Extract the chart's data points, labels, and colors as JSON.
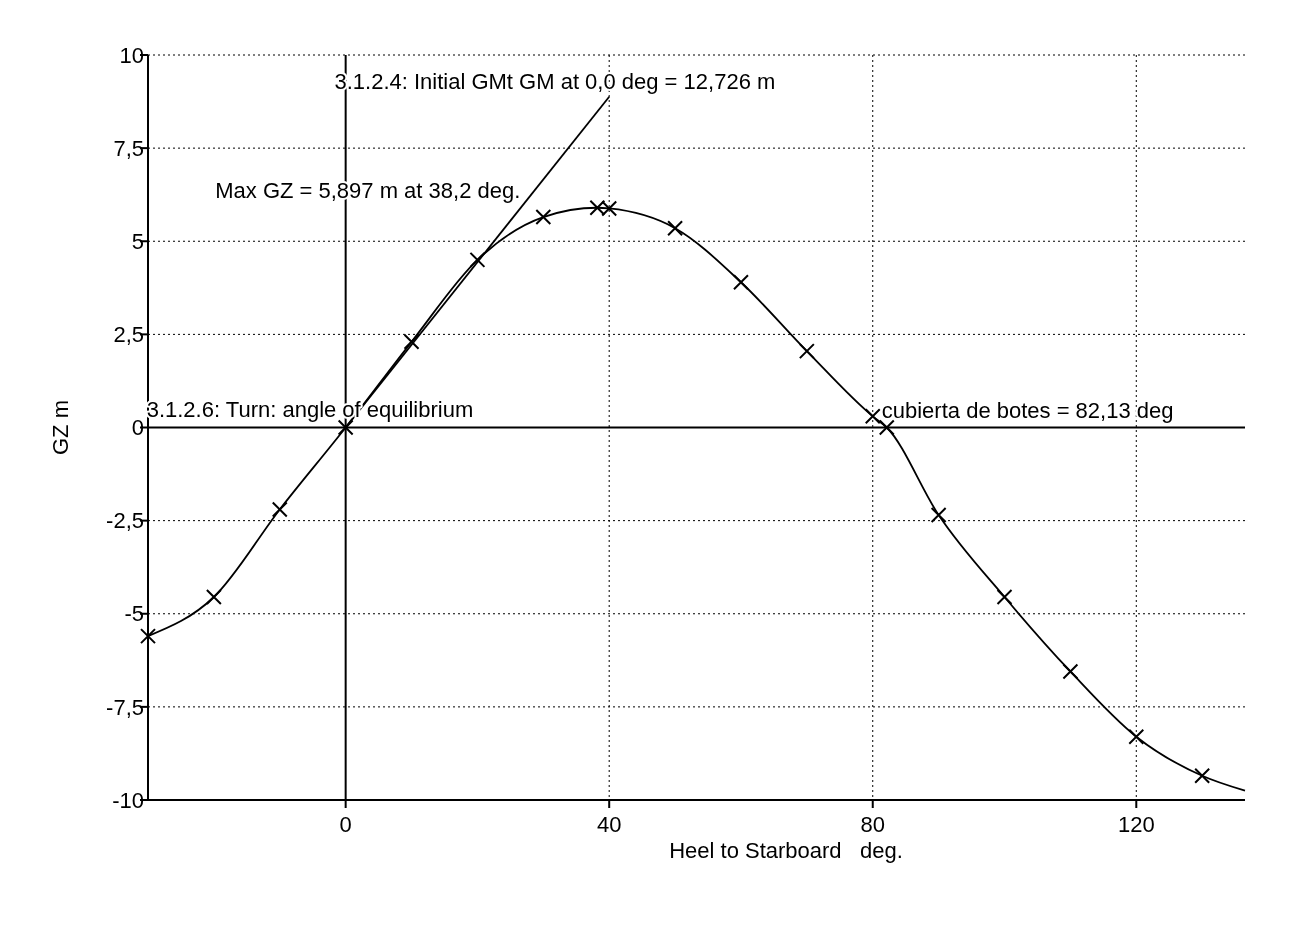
{
  "chart_data": {
    "type": "line",
    "xlabel": "Heel to Starboard   deg.",
    "ylabel": "GZ m",
    "xlim": [
      -30,
      136.5
    ],
    "ylim": [
      -10,
      10
    ],
    "xticks": [
      0,
      40,
      80,
      120
    ],
    "yticks": [
      {
        "value": 10,
        "label": "10"
      },
      {
        "value": 7.5,
        "label": "7,5"
      },
      {
        "value": 5,
        "label": "5"
      },
      {
        "value": 2.5,
        "label": "2,5"
      },
      {
        "value": 0,
        "label": "0"
      },
      {
        "value": -2.5,
        "label": "-2,5"
      },
      {
        "value": -5,
        "label": "-5"
      },
      {
        "value": -7.5,
        "label": "-7,5"
      },
      {
        "value": -10,
        "label": "-10"
      }
    ],
    "grid": true,
    "series": [
      {
        "marker": "none",
        "color": "#000000",
        "x": [
          -30,
          -20,
          -10,
          0,
          10,
          20,
          30,
          38.2,
          40,
          50,
          60,
          70,
          80,
          82.13,
          90,
          100,
          110,
          120,
          130,
          136.5
        ],
        "values": [
          -5.6,
          -4.55,
          -2.2,
          0,
          2.3,
          4.5,
          5.65,
          5.9,
          5.88,
          5.35,
          3.9,
          2.05,
          0.3,
          0,
          -2.35,
          -4.55,
          -6.55,
          -8.3,
          -9.35,
          -9.75
        ]
      },
      {
        "type": "scatter",
        "marker": "cross",
        "color": "#000000",
        "x": [
          -30,
          -20,
          -10,
          0,
          10,
          20,
          30,
          38.2,
          40,
          50,
          60,
          70,
          80,
          82.13,
          90,
          100,
          110,
          120,
          130
        ],
        "values": [
          -5.6,
          -4.55,
          -2.2,
          0,
          2.3,
          4.5,
          5.65,
          5.9,
          5.88,
          5.35,
          3.9,
          2.05,
          0.3,
          0,
          -2.35,
          -4.55,
          -6.55,
          -8.3,
          -9.35
        ]
      },
      {
        "marker": "none",
        "color": "#000000",
        "x": [
          0,
          40
        ],
        "values": [
          0,
          8.88
        ]
      }
    ],
    "annotations": [
      "3.1.2.4: Initial GMt GM at 0,0 deg = 12,726 m",
      "Max GZ = 5,897 m at 38,2 deg.",
      "3.1.2.6: Turn: angle of equilibrium",
      {
        "text": "cubierta de botes = 82,13 deg",
        "x": 82.13,
        "y": 0
      }
    ]
  }
}
